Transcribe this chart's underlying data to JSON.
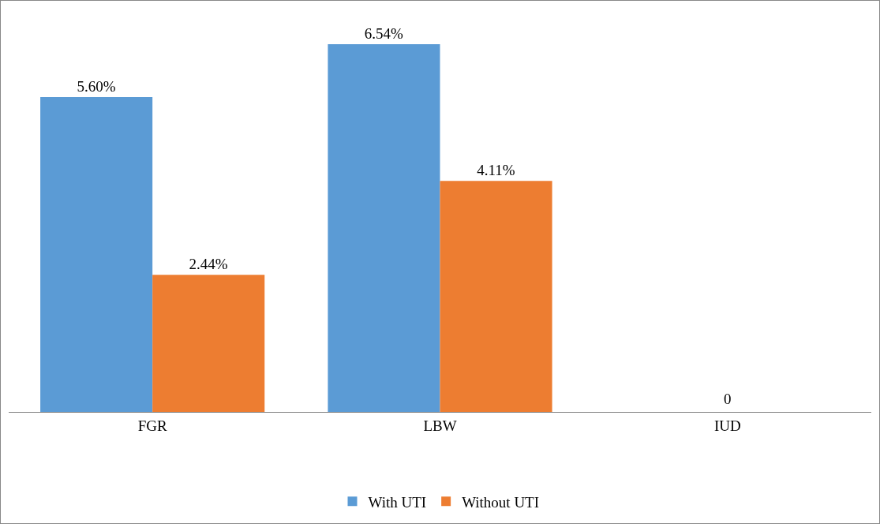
{
  "chart_data": {
    "type": "bar",
    "categories": [
      "FGR",
      "LBW",
      "IUD"
    ],
    "series": [
      {
        "name": "With UTI",
        "color": "#5b9bd5",
        "values": [
          5.6,
          6.54,
          0
        ],
        "value_labels": [
          "5.60%",
          "6.54%",
          null
        ]
      },
      {
        "name": "Without UTI",
        "color": "#ed7d31",
        "values": [
          2.44,
          4.11,
          0
        ],
        "value_labels": [
          "2.44%",
          "4.11%",
          null
        ]
      }
    ],
    "annotations": [
      {
        "text": "0",
        "x": "IUD",
        "y": 0
      }
    ],
    "legend": "bottom",
    "grid": false
  }
}
